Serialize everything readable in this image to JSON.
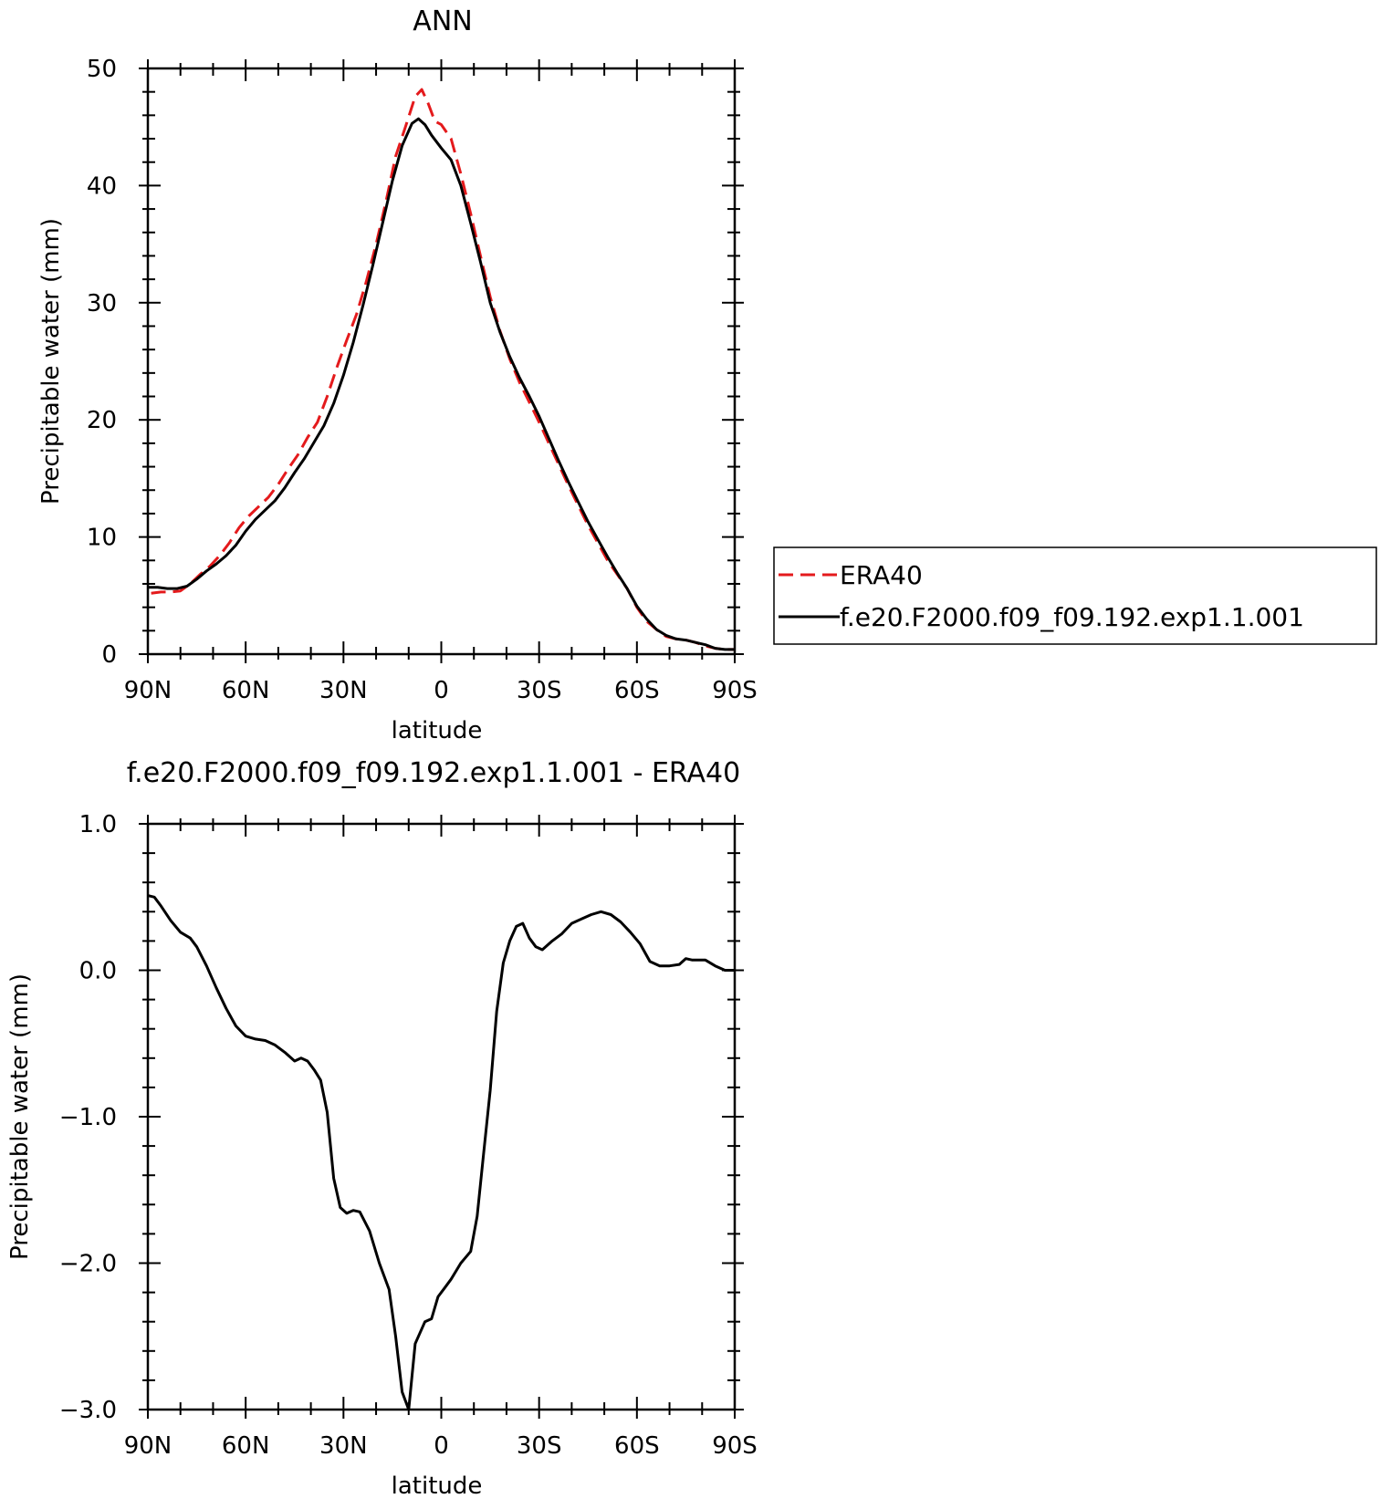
{
  "chart_data": [
    {
      "type": "line",
      "title": "ANN",
      "xlabel": "latitude",
      "ylabel": "Precipitable water (mm)",
      "xlim": [
        -90,
        90
      ],
      "ylim": [
        0,
        50
      ],
      "x_ticks": [
        {
          "value": -90,
          "label": "90N"
        },
        {
          "value": -60,
          "label": "60N"
        },
        {
          "value": -30,
          "label": "30N"
        },
        {
          "value": 0,
          "label": "0"
        },
        {
          "value": 30,
          "label": "30S"
        },
        {
          "value": 60,
          "label": "60S"
        },
        {
          "value": 90,
          "label": "90S"
        }
      ],
      "y_ticks": [
        {
          "value": 0,
          "label": "0"
        },
        {
          "value": 10,
          "label": "10"
        },
        {
          "value": 20,
          "label": "20"
        },
        {
          "value": 30,
          "label": "30"
        },
        {
          "value": 40,
          "label": "40"
        },
        {
          "value": 50,
          "label": "50"
        }
      ],
      "grid": false,
      "legend_position": "right, outside plot",
      "series": [
        {
          "name": "ERA40",
          "color": "#e41a1c",
          "dash": "dashed",
          "x": [
            -89,
            -86,
            -83,
            -80,
            -77,
            -74,
            -71,
            -68,
            -65,
            -62,
            -59,
            -56,
            -53,
            -50,
            -47,
            -44,
            -41,
            -38,
            -35,
            -32,
            -29,
            -26,
            -23,
            -20,
            -17,
            -14,
            -11,
            -8,
            -6,
            -4,
            -2,
            0,
            3,
            6,
            9,
            12,
            15,
            18,
            21,
            24,
            27,
            30,
            33,
            36,
            39,
            42,
            45,
            48,
            51,
            54,
            57,
            60,
            63,
            66,
            69,
            72,
            75,
            78,
            81,
            84,
            87,
            90
          ],
          "y": [
            5.2,
            5.3,
            5.3,
            5.4,
            6.0,
            6.8,
            7.5,
            8.4,
            9.5,
            10.8,
            11.8,
            12.6,
            13.4,
            14.5,
            15.8,
            17.0,
            18.5,
            19.8,
            22.0,
            24.5,
            26.8,
            29.0,
            31.8,
            35.0,
            38.6,
            42.5,
            45.0,
            47.6,
            48.2,
            47.0,
            45.5,
            45.2,
            44.0,
            41.0,
            37.6,
            34.0,
            30.5,
            27.6,
            25.2,
            23.2,
            21.5,
            19.8,
            18.0,
            16.2,
            14.4,
            12.7,
            11.0,
            9.5,
            8.0,
            6.8,
            5.6,
            4.0,
            2.8,
            2.1,
            1.5,
            1.3,
            1.2,
            1.0,
            0.7,
            0.5,
            0.4,
            0.4
          ]
        },
        {
          "name": "f.e20.F2000.f09_f09.192.exp1.1.001",
          "color": "#000000",
          "dash": "solid",
          "x": [
            -90,
            -87,
            -84,
            -81,
            -78,
            -75,
            -72,
            -69,
            -66,
            -63,
            -60,
            -57,
            -54,
            -51,
            -48,
            -45,
            -42,
            -39,
            -36,
            -33,
            -30,
            -27,
            -24,
            -21,
            -18,
            -15,
            -12,
            -9,
            -7,
            -5,
            -3,
            0,
            3,
            6,
            9,
            12,
            15,
            18,
            21,
            24,
            27,
            30,
            33,
            36,
            39,
            42,
            45,
            48,
            51,
            54,
            57,
            60,
            63,
            66,
            69,
            72,
            75,
            78,
            81,
            84,
            87,
            90
          ],
          "y": [
            5.7,
            5.7,
            5.6,
            5.6,
            5.8,
            6.4,
            7.1,
            7.7,
            8.4,
            9.3,
            10.5,
            11.5,
            12.3,
            13.1,
            14.2,
            15.5,
            16.7,
            18.1,
            19.5,
            21.4,
            23.8,
            26.6,
            29.8,
            33.2,
            36.8,
            40.4,
            43.4,
            45.3,
            45.7,
            45.2,
            44.3,
            43.2,
            42.2,
            40.0,
            36.8,
            33.5,
            30.0,
            27.5,
            25.4,
            23.6,
            22.0,
            20.3,
            18.4,
            16.5,
            14.7,
            13.0,
            11.3,
            9.8,
            8.3,
            6.9,
            5.6,
            4.1,
            3.0,
            2.1,
            1.6,
            1.3,
            1.2,
            1.0,
            0.8,
            0.5,
            0.4,
            0.4
          ]
        }
      ]
    },
    {
      "type": "line",
      "title": "f.e20.F2000.f09_f09.192.exp1.1.001 - ERA40",
      "xlabel": "latitude",
      "ylabel": "Precipitable water (mm)",
      "xlim": [
        -90,
        90
      ],
      "ylim": [
        -3.0,
        1.0
      ],
      "x_ticks": [
        {
          "value": -90,
          "label": "90N"
        },
        {
          "value": -60,
          "label": "60N"
        },
        {
          "value": -30,
          "label": "30N"
        },
        {
          "value": 0,
          "label": "0"
        },
        {
          "value": 30,
          "label": "30S"
        },
        {
          "value": 60,
          "label": "60S"
        },
        {
          "value": 90,
          "label": "90S"
        }
      ],
      "y_ticks": [
        {
          "value": -3.0,
          "label": "−3.0"
        },
        {
          "value": -2.0,
          "label": "−2.0"
        },
        {
          "value": -1.0,
          "label": "−1.0"
        },
        {
          "value": 0.0,
          "label": "0.0"
        },
        {
          "value": 1.0,
          "label": "1.0"
        }
      ],
      "grid": false,
      "series": [
        {
          "color": "#000000",
          "dash": "solid",
          "x": [
            -90,
            -88,
            -86,
            -83,
            -80,
            -77,
            -75,
            -72,
            -69,
            -66,
            -63,
            -60,
            -57,
            -54,
            -51,
            -48,
            -45,
            -43,
            -41,
            -39,
            -37,
            -35,
            -33,
            -31,
            -29,
            -27,
            -25,
            -22,
            -19,
            -16,
            -14,
            -12,
            -10,
            -8,
            -5,
            -3,
            -1,
            1,
            3,
            6,
            9,
            11,
            13,
            15,
            17,
            19,
            21,
            23,
            25,
            27,
            29,
            31,
            34,
            37,
            40,
            43,
            46,
            49,
            52,
            55,
            58,
            61,
            64,
            67,
            70,
            73,
            75,
            77,
            79,
            81,
            84,
            87,
            90
          ],
          "y": [
            0.51,
            0.5,
            0.44,
            0.34,
            0.26,
            0.22,
            0.16,
            0.03,
            -0.12,
            -0.26,
            -0.38,
            -0.45,
            -0.47,
            -0.48,
            -0.51,
            -0.56,
            -0.62,
            -0.6,
            -0.62,
            -0.68,
            -0.75,
            -0.97,
            -1.42,
            -1.62,
            -1.66,
            -1.64,
            -1.65,
            -1.78,
            -2.0,
            -2.18,
            -2.5,
            -2.88,
            -3.0,
            -2.55,
            -2.4,
            -2.38,
            -2.23,
            -2.17,
            -2.11,
            -2.0,
            -1.92,
            -1.68,
            -1.25,
            -0.82,
            -0.28,
            0.05,
            0.2,
            0.3,
            0.32,
            0.22,
            0.16,
            0.14,
            0.2,
            0.25,
            0.32,
            0.35,
            0.38,
            0.4,
            0.38,
            0.33,
            0.26,
            0.18,
            0.06,
            0.03,
            0.03,
            0.04,
            0.08,
            0.07,
            0.07,
            0.07,
            0.03,
            0.0,
            0.0
          ]
        }
      ]
    }
  ]
}
